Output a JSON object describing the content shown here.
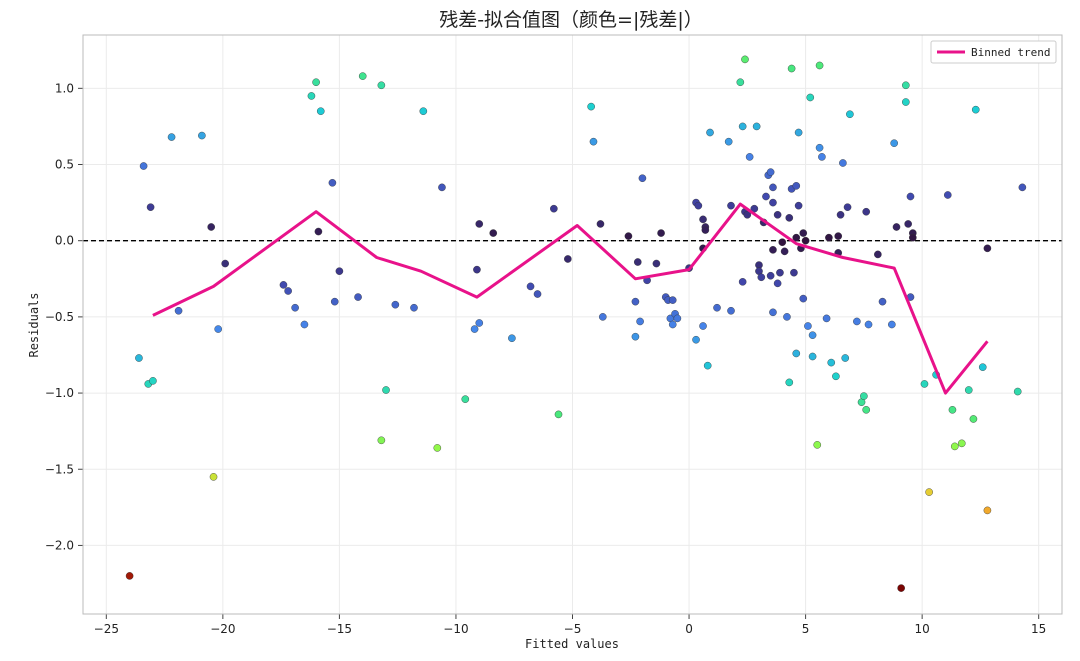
{
  "chart_data": {
    "type": "scatter",
    "title": "残差-拟合值图（颜色=|残差|）",
    "xlabel": "Fitted values",
    "ylabel": "Residuals",
    "xlim": [
      -26,
      16
    ],
    "ylim": [
      -2.45,
      1.35
    ],
    "xticks": [
      -25,
      -20,
      -15,
      -10,
      -5,
      0,
      5,
      10,
      15
    ],
    "yticks": [
      -2.0,
      -1.5,
      -1.0,
      -0.5,
      0.0,
      0.5,
      1.0
    ],
    "xtick_labels": [
      "−25",
      "−20",
      "−15",
      "−10",
      "−5",
      "0",
      "5",
      "10",
      "15"
    ],
    "ytick_labels": [
      "−2.0",
      "−1.5",
      "−1.0",
      "−0.5",
      "0.0",
      "0.5",
      "1.0"
    ],
    "grid": true,
    "reference_line": {
      "y": 0,
      "style": "dashed",
      "color": "#000000"
    },
    "colormap": "turbo-like (|residual| dark purple → green → dark red)",
    "legend": {
      "position": "top-right",
      "entries": [
        "Binned trend"
      ]
    },
    "trend_color": "#e8128a",
    "points": [
      [
        -24.0,
        -2.2
      ],
      [
        -23.6,
        -0.77
      ],
      [
        -23.2,
        -0.94
      ],
      [
        -23.0,
        -0.92
      ],
      [
        -23.4,
        0.49
      ],
      [
        -23.1,
        0.22
      ],
      [
        -22.2,
        0.68
      ],
      [
        -21.9,
        -0.46
      ],
      [
        -20.9,
        0.69
      ],
      [
        -20.4,
        -1.55
      ],
      [
        -20.2,
        -0.58
      ],
      [
        -20.5,
        0.09
      ],
      [
        -19.9,
        -0.15
      ],
      [
        -17.4,
        -0.29
      ],
      [
        -17.2,
        -0.33
      ],
      [
        -16.9,
        -0.44
      ],
      [
        -16.5,
        -0.55
      ],
      [
        -16.2,
        0.95
      ],
      [
        -16.0,
        1.04
      ],
      [
        -15.8,
        0.85
      ],
      [
        -15.9,
        0.06
      ],
      [
        -15.3,
        0.38
      ],
      [
        -15.2,
        -0.4
      ],
      [
        -15.0,
        -0.2
      ],
      [
        -14.2,
        -0.37
      ],
      [
        -14.0,
        1.08
      ],
      [
        -13.2,
        1.02
      ],
      [
        -13.0,
        -0.98
      ],
      [
        -13.2,
        -1.31
      ],
      [
        -12.6,
        -0.42
      ],
      [
        -11.8,
        -0.44
      ],
      [
        -11.4,
        0.85
      ],
      [
        -10.8,
        -1.36
      ],
      [
        -10.6,
        0.35
      ],
      [
        -9.6,
        -1.04
      ],
      [
        -9.2,
        -0.58
      ],
      [
        -9.0,
        -0.54
      ],
      [
        -9.1,
        -0.19
      ],
      [
        -9.0,
        0.11
      ],
      [
        -8.4,
        0.05
      ],
      [
        -7.6,
        -0.64
      ],
      [
        -6.8,
        -0.3
      ],
      [
        -6.5,
        -0.35
      ],
      [
        -5.8,
        0.21
      ],
      [
        -5.6,
        -1.14
      ],
      [
        -5.2,
        -0.12
      ],
      [
        -4.2,
        0.88
      ],
      [
        -4.1,
        0.65
      ],
      [
        -3.7,
        -0.5
      ],
      [
        -3.8,
        0.11
      ],
      [
        -2.6,
        0.03
      ],
      [
        -2.3,
        -0.63
      ],
      [
        -2.3,
        -0.4
      ],
      [
        -2.2,
        -0.14
      ],
      [
        -2.1,
        -0.53
      ],
      [
        -2.0,
        0.41
      ],
      [
        -1.8,
        -0.26
      ],
      [
        -1.4,
        -0.15
      ],
      [
        -1.2,
        0.05
      ],
      [
        -1.0,
        -0.37
      ],
      [
        -0.9,
        -0.39
      ],
      [
        -0.8,
        -0.51
      ],
      [
        -0.7,
        -0.39
      ],
      [
        -0.7,
        -0.55
      ],
      [
        -0.6,
        -0.48
      ],
      [
        -0.5,
        -0.51
      ],
      [
        0.0,
        -0.18
      ],
      [
        0.3,
        0.25
      ],
      [
        0.4,
        0.23
      ],
      [
        0.3,
        -0.65
      ],
      [
        0.6,
        -0.56
      ],
      [
        0.6,
        0.14
      ],
      [
        0.7,
        0.09
      ],
      [
        0.7,
        0.07
      ],
      [
        0.6,
        -0.05
      ],
      [
        0.8,
        -0.82
      ],
      [
        0.9,
        0.71
      ],
      [
        1.2,
        -0.44
      ],
      [
        1.7,
        0.65
      ],
      [
        1.8,
        -0.46
      ],
      [
        1.8,
        0.23
      ],
      [
        2.2,
        1.04
      ],
      [
        2.4,
        1.19
      ],
      [
        2.3,
        0.75
      ],
      [
        2.3,
        -0.27
      ],
      [
        2.4,
        0.19
      ],
      [
        2.5,
        0.17
      ],
      [
        2.6,
        0.55
      ],
      [
        2.9,
        0.75
      ],
      [
        2.8,
        0.21
      ],
      [
        3.0,
        -0.16
      ],
      [
        3.0,
        -0.2
      ],
      [
        3.1,
        -0.24
      ],
      [
        3.2,
        0.12
      ],
      [
        3.3,
        0.29
      ],
      [
        3.4,
        0.43
      ],
      [
        3.5,
        0.45
      ],
      [
        3.5,
        -0.23
      ],
      [
        3.6,
        0.35
      ],
      [
        3.6,
        -0.06
      ],
      [
        3.6,
        0.25
      ],
      [
        3.6,
        -0.47
      ],
      [
        3.8,
        -0.28
      ],
      [
        3.8,
        0.17
      ],
      [
        3.9,
        -0.21
      ],
      [
        4.0,
        -0.01
      ],
      [
        4.1,
        -0.07
      ],
      [
        4.2,
        -0.5
      ],
      [
        4.3,
        0.15
      ],
      [
        4.3,
        -0.93
      ],
      [
        4.4,
        0.34
      ],
      [
        4.4,
        1.13
      ],
      [
        4.5,
        -0.21
      ],
      [
        4.6,
        0.02
      ],
      [
        4.6,
        -0.74
      ],
      [
        4.6,
        0.36
      ],
      [
        4.7,
        0.71
      ],
      [
        4.7,
        0.23
      ],
      [
        4.8,
        -0.05
      ],
      [
        4.9,
        0.05
      ],
      [
        4.9,
        -0.38
      ],
      [
        5.0,
        0.0
      ],
      [
        5.1,
        -0.56
      ],
      [
        5.2,
        0.94
      ],
      [
        5.3,
        -0.62
      ],
      [
        5.3,
        -0.76
      ],
      [
        5.5,
        -1.34
      ],
      [
        5.6,
        0.61
      ],
      [
        5.6,
        1.15
      ],
      [
        5.7,
        0.55
      ],
      [
        5.9,
        -0.51
      ],
      [
        6.0,
        0.02
      ],
      [
        6.1,
        -0.8
      ],
      [
        6.3,
        -0.89
      ],
      [
        6.4,
        0.03
      ],
      [
        6.4,
        -0.08
      ],
      [
        6.5,
        0.17
      ],
      [
        6.6,
        0.51
      ],
      [
        6.7,
        -0.77
      ],
      [
        6.8,
        0.22
      ],
      [
        6.9,
        0.83
      ],
      [
        7.2,
        -0.53
      ],
      [
        7.4,
        -1.06
      ],
      [
        7.5,
        -1.02
      ],
      [
        7.6,
        0.19
      ],
      [
        7.6,
        -1.11
      ],
      [
        7.7,
        -0.55
      ],
      [
        8.1,
        -0.09
      ],
      [
        8.3,
        -0.4
      ],
      [
        8.7,
        -0.55
      ],
      [
        8.8,
        0.64
      ],
      [
        8.9,
        0.09
      ],
      [
        9.1,
        -2.28
      ],
      [
        9.3,
        1.02
      ],
      [
        9.3,
        0.91
      ],
      [
        9.4,
        0.11
      ],
      [
        9.5,
        -0.37
      ],
      [
        9.5,
        0.29
      ],
      [
        9.6,
        0.05
      ],
      [
        9.6,
        0.02
      ],
      [
        10.1,
        -0.94
      ],
      [
        10.3,
        -1.65
      ],
      [
        10.6,
        -0.88
      ],
      [
        11.1,
        0.3
      ],
      [
        11.3,
        -1.11
      ],
      [
        11.4,
        -1.35
      ],
      [
        11.7,
        -1.33
      ],
      [
        12.0,
        -0.98
      ],
      [
        12.2,
        -1.17
      ],
      [
        12.3,
        0.86
      ],
      [
        12.6,
        -0.83
      ],
      [
        12.8,
        -0.05
      ],
      [
        12.8,
        -1.77
      ],
      [
        14.1,
        -0.99
      ],
      [
        14.3,
        0.35
      ]
    ],
    "series": [
      {
        "name": "Binned trend",
        "x": [
          -23.0,
          -20.4,
          -16.0,
          -13.4,
          -11.5,
          -9.1,
          -4.8,
          -2.3,
          0.0,
          2.2,
          4.6,
          6.6,
          8.8,
          11.0,
          12.8
        ],
        "y": [
          -0.49,
          -0.3,
          0.19,
          -0.11,
          -0.2,
          -0.37,
          0.1,
          -0.25,
          -0.19,
          0.24,
          -0.02,
          -0.11,
          -0.18,
          -1.0,
          -0.66
        ]
      }
    ]
  }
}
